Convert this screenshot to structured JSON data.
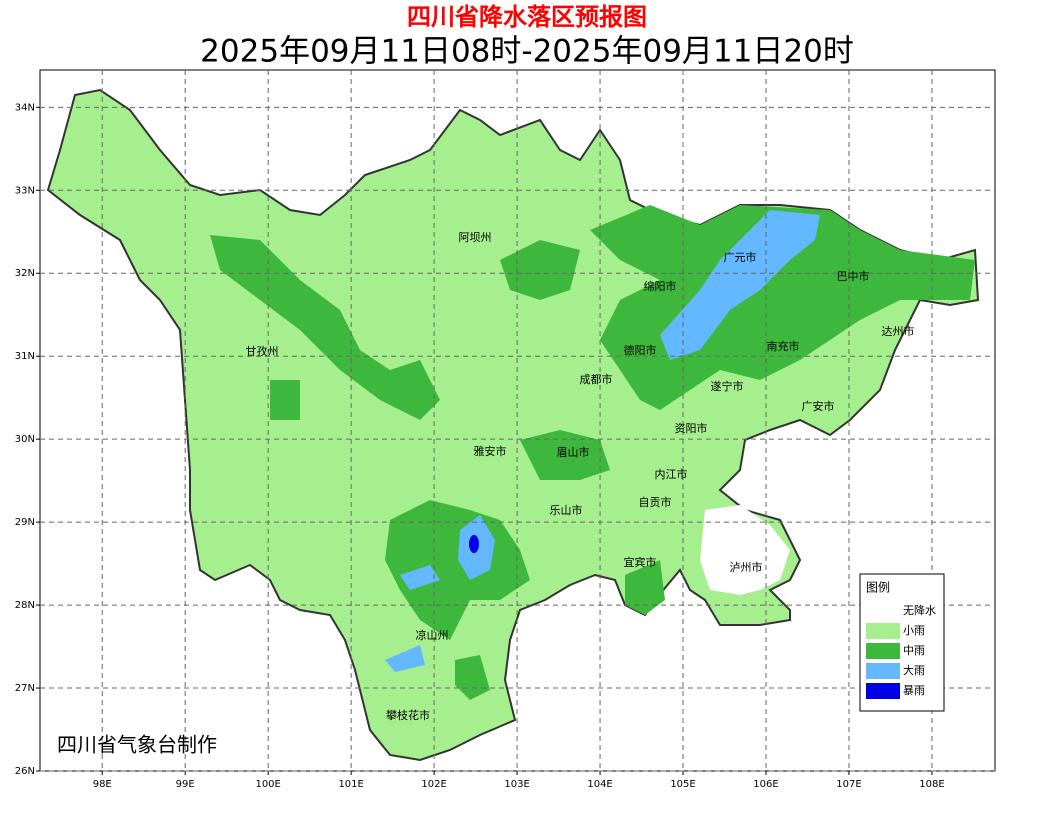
{
  "header": {
    "title": "四川省降水落区预报图",
    "subtitle": "2025年09月11日08时-2025年09月11日20时"
  },
  "map": {
    "xlim": [
      97.25,
      108.76
    ],
    "ylim": [
      26,
      34.45
    ],
    "xticks": [
      {
        "value": 98,
        "label": "98E"
      },
      {
        "value": 99,
        "label": "99E"
      },
      {
        "value": 100,
        "label": "100E"
      },
      {
        "value": 101,
        "label": "101E"
      },
      {
        "value": 102,
        "label": "102E"
      },
      {
        "value": 103,
        "label": "103E"
      },
      {
        "value": 104,
        "label": "104E"
      },
      {
        "value": 105,
        "label": "105E"
      },
      {
        "value": 106,
        "label": "106E"
      },
      {
        "value": 107,
        "label": "107E"
      },
      {
        "value": 108,
        "label": "108E"
      }
    ],
    "yticks": [
      {
        "value": 26,
        "label": "26N"
      },
      {
        "value": 27,
        "label": "27N"
      },
      {
        "value": 28,
        "label": "28N"
      },
      {
        "value": 29,
        "label": "29N"
      },
      {
        "value": 30,
        "label": "30N"
      },
      {
        "value": 31,
        "label": "31N"
      },
      {
        "value": 32,
        "label": "32N"
      },
      {
        "value": 33,
        "label": "33N"
      },
      {
        "value": 34,
        "label": "34N"
      }
    ],
    "grid": true,
    "regions": [
      "阿坝州",
      "甘孜州",
      "绵阳市",
      "广元市",
      "巴中市",
      "达州市",
      "南充市",
      "德阳市",
      "成都市",
      "遂宁市",
      "广安市",
      "资阳市",
      "雅安市",
      "眉山市",
      "内江市",
      "乐山市",
      "自贡市",
      "宜宾市",
      "泸州市",
      "凉山州",
      "攀枝花市"
    ]
  },
  "legend": {
    "title": "图例",
    "entries": [
      {
        "label": "无降水",
        "color": "#ffffff"
      },
      {
        "label": "小雨",
        "color": "#a6ef8e"
      },
      {
        "label": "中雨",
        "color": "#3db83d"
      },
      {
        "label": "大雨",
        "color": "#63b8ff"
      },
      {
        "label": "暴雨",
        "color": "#0000e6"
      }
    ]
  },
  "credit": "四川省气象台制作"
}
